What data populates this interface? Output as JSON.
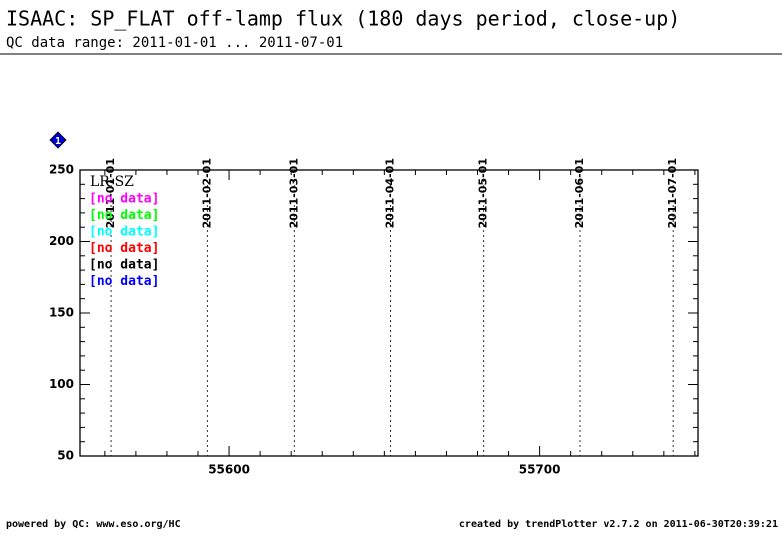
{
  "title": "ISAAC: SP_FLAT off-lamp flux (180 days period, close-up)",
  "subtitle": "QC data range: 2011-01-01 ... 2011-07-01",
  "footer_left": "powered by QC: www.eso.org/HC",
  "footer_right": "created by trendPlotter v2.7.2 on 2011-06-30T20:39:21",
  "chart_data": {
    "type": "line",
    "marker_label": "1",
    "xlim": [
      55552,
      55751
    ],
    "xticks": [
      55600,
      55700
    ],
    "xminorticks": [
      55560,
      55570,
      55580,
      55590,
      55610,
      55620,
      55630,
      55640,
      55650,
      55660,
      55670,
      55680,
      55690,
      55710,
      55720,
      55730,
      55740,
      55750
    ],
    "ylim": [
      50,
      250
    ],
    "yticks": [
      50,
      100,
      150,
      200,
      250
    ],
    "yminorticks": [
      60,
      70,
      80,
      90,
      110,
      120,
      130,
      140,
      160,
      170,
      180,
      190,
      210,
      220,
      230,
      240
    ],
    "date_markers": [
      {
        "value": 55562,
        "label": "2011-01-01"
      },
      {
        "value": 55593,
        "label": "2011-02-01"
      },
      {
        "value": 55621,
        "label": "2011-03-01"
      },
      {
        "value": 55652,
        "label": "2011-04-01"
      },
      {
        "value": 55682,
        "label": "2011-05-01"
      },
      {
        "value": 55713,
        "label": "2011-06-01"
      },
      {
        "value": 55743,
        "label": "2011-07-01"
      }
    ],
    "legend": {
      "title": "LR-SZ",
      "entries": [
        {
          "text": "[no data]",
          "color": "#ff00ff"
        },
        {
          "text": "[no data]",
          "color": "#00ff00"
        },
        {
          "text": "[no data]",
          "color": "#00ffff"
        },
        {
          "text": "[no data]",
          "color": "#ff0000"
        },
        {
          "text": "[no data]",
          "color": "#000000"
        },
        {
          "text": "[no data]",
          "color": "#0000ff"
        }
      ]
    }
  }
}
